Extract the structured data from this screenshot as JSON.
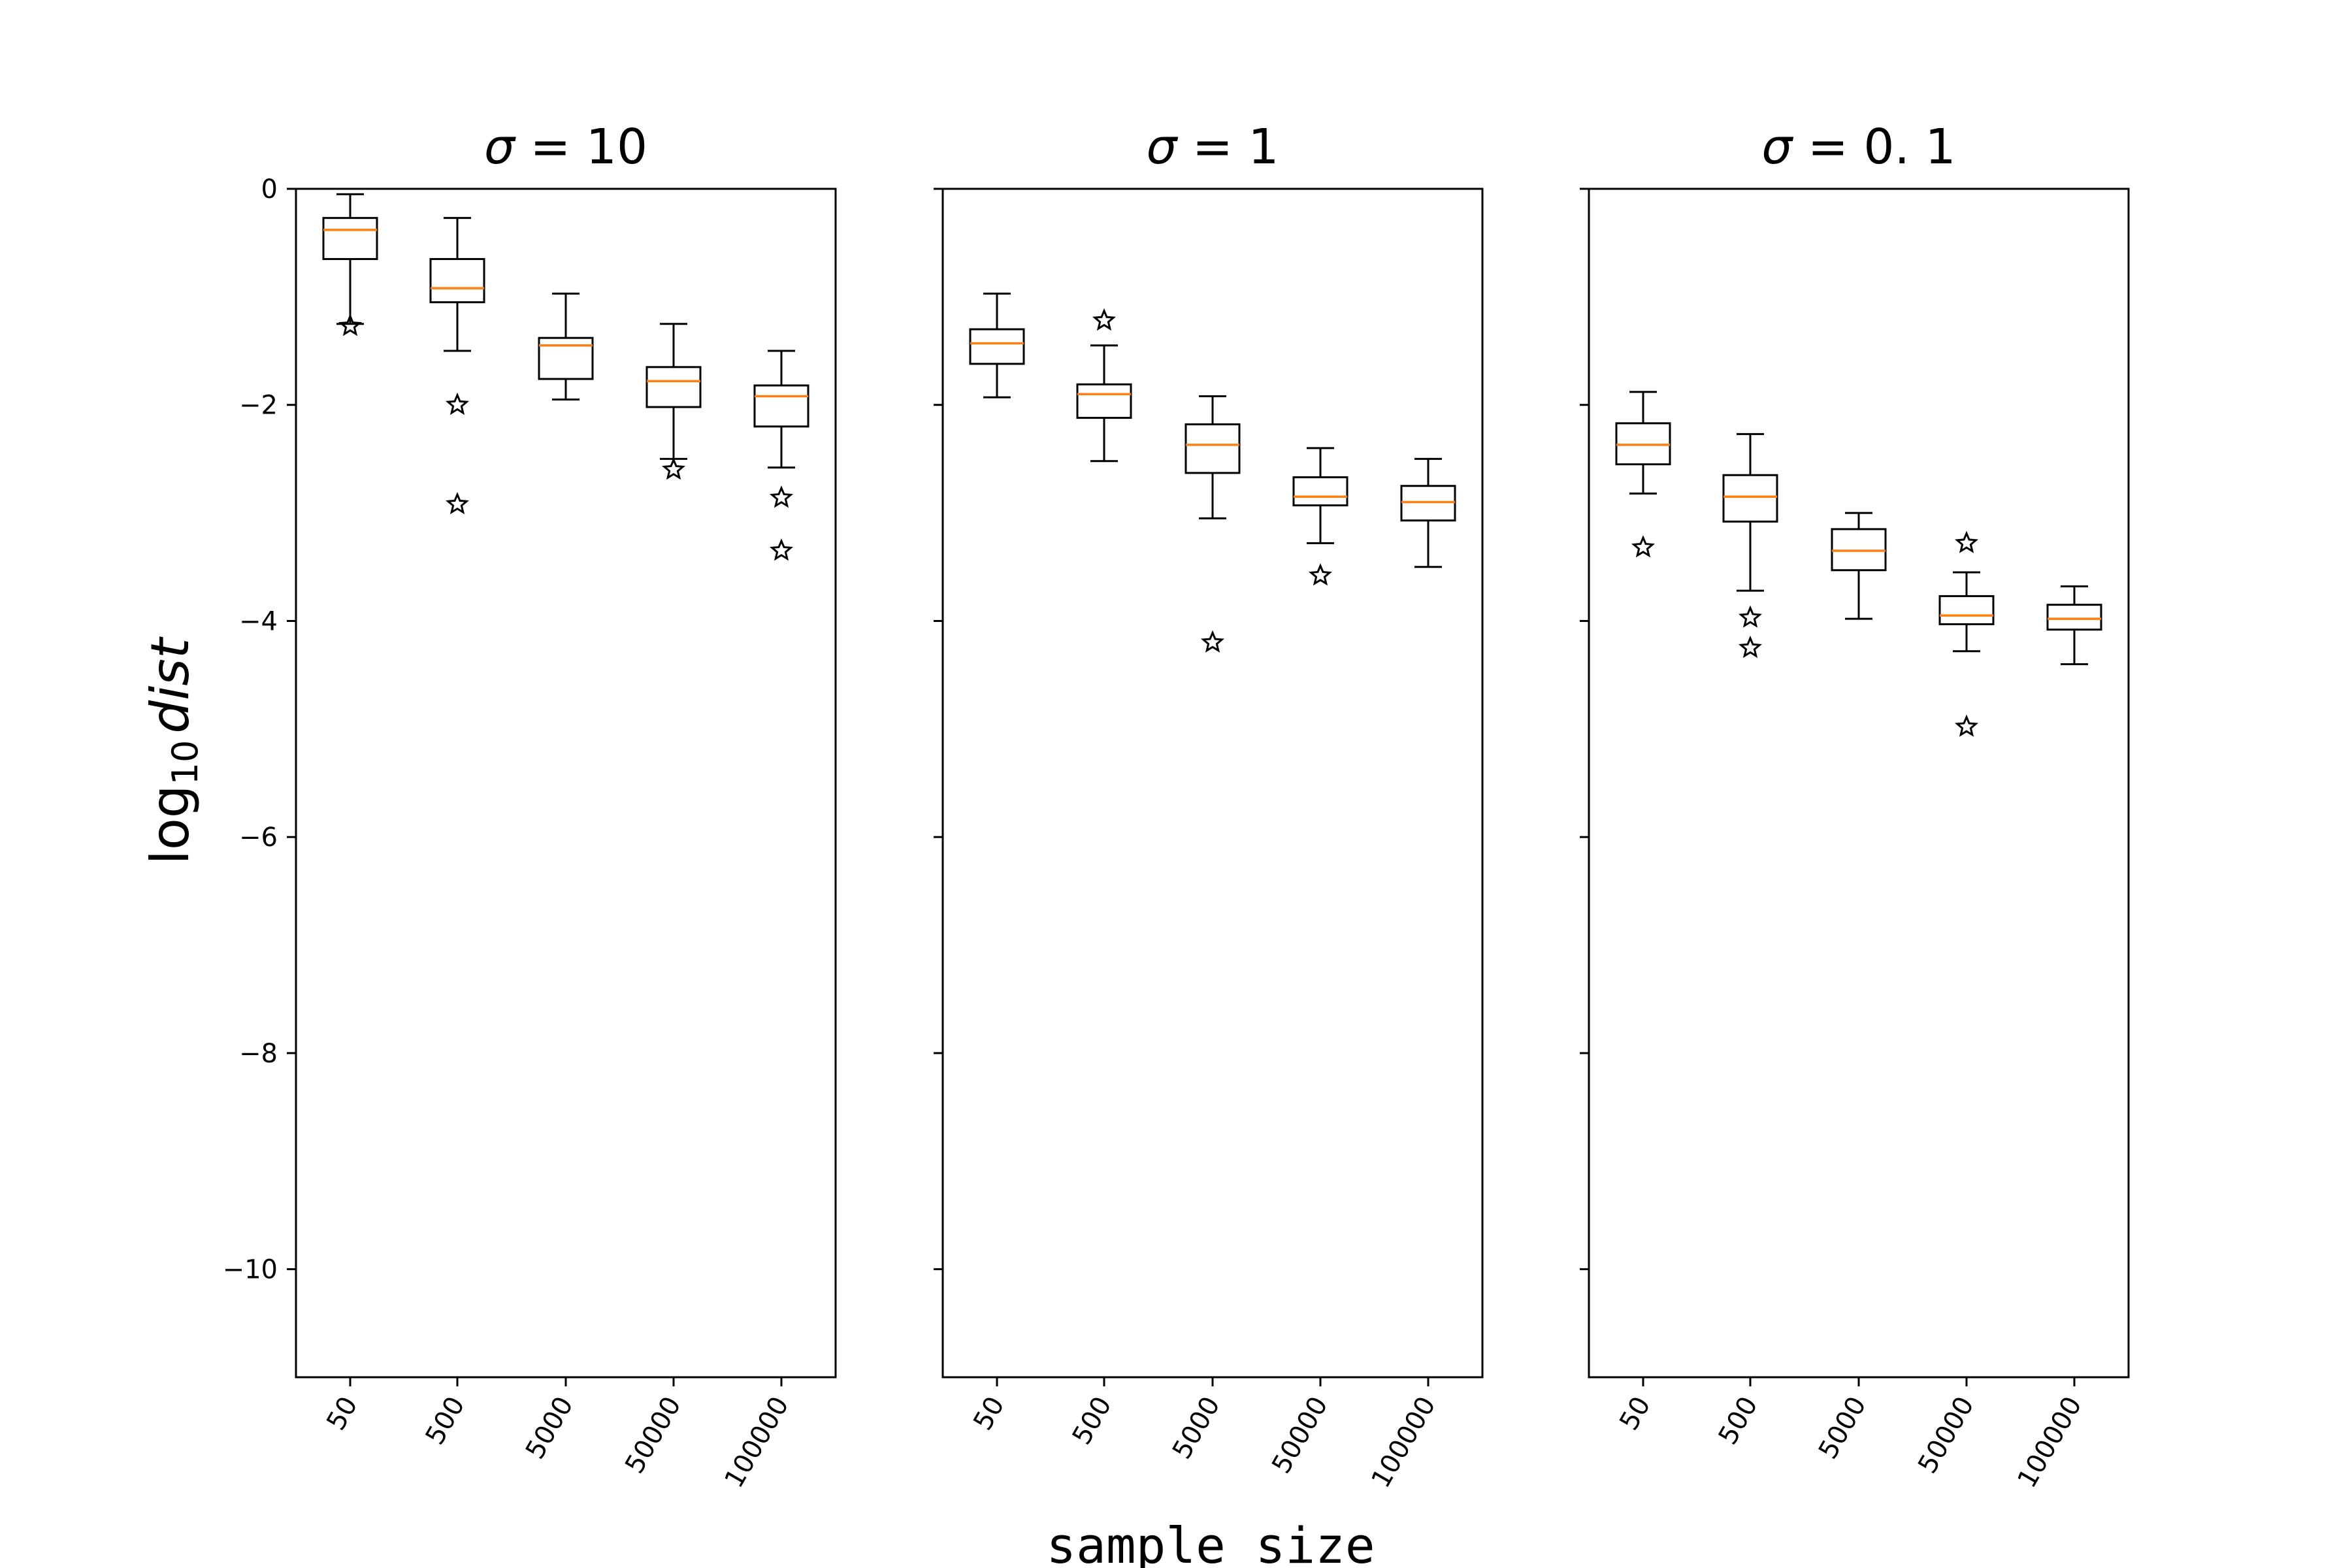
{
  "chart_data": {
    "type": "box",
    "xlabel": "sample size",
    "ylabel_main": "log",
    "ylabel_sub": "10",
    "ylabel_var": "dist",
    "ylim": [
      -11,
      0
    ],
    "yticks": [
      0,
      -2,
      -4,
      -6,
      -8,
      -10
    ],
    "ytick_labels": [
      "0",
      "−2",
      "−4",
      "−6",
      "−8",
      "−10"
    ],
    "categories": [
      "50",
      "500",
      "5000",
      "50000",
      "100000"
    ],
    "colors": {
      "box": "#000000",
      "median": "#ff7f0e",
      "flier": "#000000"
    },
    "panels": [
      {
        "title_var": "σ",
        "title_eq": " = 10",
        "boxes": [
          {
            "whislo": -1.25,
            "q1": -0.65,
            "med": -0.38,
            "q3": -0.27,
            "whishi": -0.05,
            "fliers": [
              -1.27
            ]
          },
          {
            "whislo": -1.5,
            "q1": -1.05,
            "med": -0.92,
            "q3": -0.65,
            "whishi": -0.27,
            "fliers": [
              -2.0,
              -2.92
            ]
          },
          {
            "whislo": -1.95,
            "q1": -1.76,
            "med": -1.45,
            "q3": -1.38,
            "whishi": -0.97,
            "fliers": []
          },
          {
            "whislo": -2.5,
            "q1": -2.02,
            "med": -1.78,
            "q3": -1.65,
            "whishi": -1.25,
            "fliers": [
              -2.6
            ]
          },
          {
            "whislo": -2.58,
            "q1": -2.2,
            "med": -1.92,
            "q3": -1.82,
            "whishi": -1.5,
            "fliers": [
              -2.86,
              -3.35
            ]
          }
        ]
      },
      {
        "title_var": "σ",
        "title_eq": " = 1",
        "boxes": [
          {
            "whislo": -1.93,
            "q1": -1.62,
            "med": -1.43,
            "q3": -1.3,
            "whishi": -0.97,
            "fliers": []
          },
          {
            "whislo": -2.52,
            "q1": -2.12,
            "med": -1.9,
            "q3": -1.81,
            "whishi": -1.45,
            "fliers": [
              -1.22
            ]
          },
          {
            "whislo": -3.05,
            "q1": -2.63,
            "med": -2.37,
            "q3": -2.18,
            "whishi": -1.92,
            "fliers": [
              -4.2
            ]
          },
          {
            "whislo": -3.28,
            "q1": -2.93,
            "med": -2.85,
            "q3": -2.67,
            "whishi": -2.4,
            "fliers": [
              -3.58
            ]
          },
          {
            "whislo": -3.5,
            "q1": -3.07,
            "med": -2.9,
            "q3": -2.75,
            "whishi": -2.5,
            "fliers": []
          }
        ]
      },
      {
        "title_var": "σ",
        "title_eq": " = 0. 1",
        "boxes": [
          {
            "whislo": -2.82,
            "q1": -2.55,
            "med": -2.37,
            "q3": -2.17,
            "whishi": -1.88,
            "fliers": [
              -3.32
            ]
          },
          {
            "whislo": -3.72,
            "q1": -3.08,
            "med": -2.85,
            "q3": -2.65,
            "whishi": -2.27,
            "fliers": [
              -3.97,
              -4.25
            ]
          },
          {
            "whislo": -3.98,
            "q1": -3.53,
            "med": -3.35,
            "q3": -3.15,
            "whishi": -3.0,
            "fliers": []
          },
          {
            "whislo": -4.28,
            "q1": -4.03,
            "med": -3.95,
            "q3": -3.77,
            "whishi": -3.55,
            "fliers": [
              -3.28,
              -4.98
            ]
          },
          {
            "whislo": -4.4,
            "q1": -4.08,
            "med": -3.98,
            "q3": -3.85,
            "whishi": -3.68,
            "fliers": []
          }
        ]
      }
    ]
  }
}
